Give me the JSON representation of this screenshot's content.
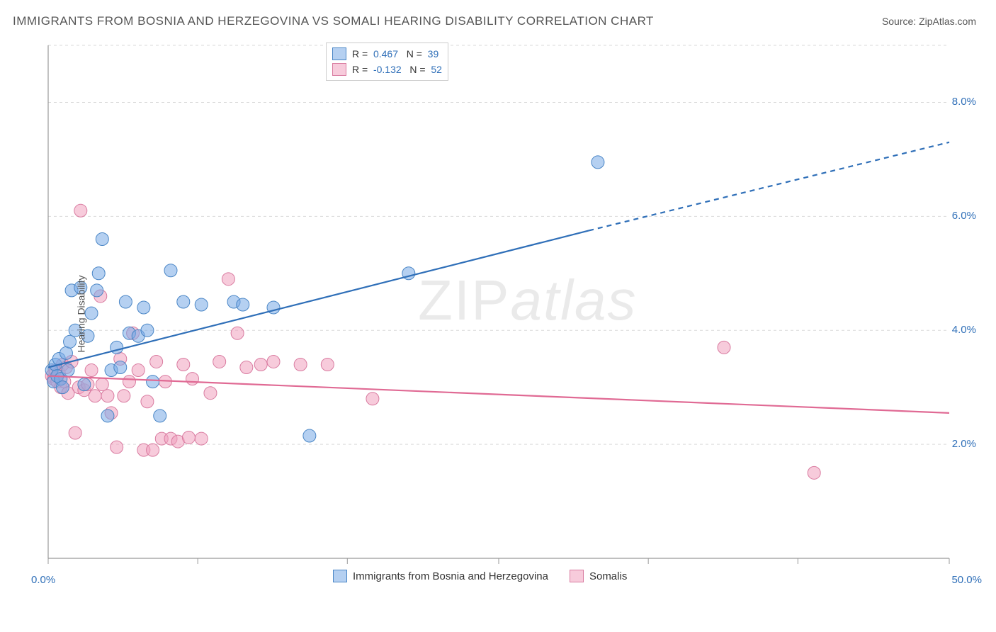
{
  "title": "IMMIGRANTS FROM BOSNIA AND HERZEGOVINA VS SOMALI HEARING DISABILITY CORRELATION CHART",
  "source_prefix": "Source: ",
  "source_name": "ZipAtlas.com",
  "ylabel": "Hearing Disability",
  "watermark_a": "ZIP",
  "watermark_b": "atlas",
  "colors": {
    "blue_fill": "rgba(120,170,230,0.55)",
    "blue_stroke": "#4a86c6",
    "blue_line": "#2f6fb8",
    "pink_fill": "rgba(240,160,190,0.55)",
    "pink_stroke": "#d97ba0",
    "pink_line": "#e06a94",
    "grid": "#d9d9d9",
    "axis": "#999",
    "num_blue": "#2f6fb8",
    "title_color": "#555"
  },
  "chart": {
    "type": "scatter",
    "xlim": [
      0,
      50
    ],
    "ylim": [
      0,
      9
    ],
    "yticks": [
      2,
      4,
      6,
      8
    ],
    "ytick_labels": [
      "2.0%",
      "4.0%",
      "6.0%",
      "8.0%"
    ],
    "xtick_labels": {
      "left": "0.0%",
      "right": "50.0%"
    },
    "xtick_positions": [
      0,
      8.3,
      16.6,
      25,
      33.3,
      41.6,
      50
    ],
    "grid_color": "#d9d9d9",
    "background": "#ffffff",
    "marker_radius": 9,
    "marker_opacity": 0.55,
    "line_width": 2.2
  },
  "stats_legend": {
    "series": [
      {
        "swatch": "blue",
        "r_label": "R =",
        "r_value": "0.467",
        "n_label": "N =",
        "n_value": "39"
      },
      {
        "swatch": "pink",
        "r_label": "R =",
        "r_value": "-0.132",
        "n_label": "N =",
        "n_value": "52"
      }
    ]
  },
  "bottom_legend": {
    "items": [
      {
        "swatch": "blue",
        "label": "Immigrants from Bosnia and Herzegovina"
      },
      {
        "swatch": "pink",
        "label": "Somalis"
      }
    ]
  },
  "series_blue": {
    "trend": {
      "x1": 0,
      "y1": 3.35,
      "x2": 30,
      "y2": 5.75,
      "x_dash_to": 50,
      "y_dash_to": 7.3
    },
    "points": [
      [
        0.2,
        3.3
      ],
      [
        0.3,
        3.1
      ],
      [
        0.4,
        3.4
      ],
      [
        0.5,
        3.2
      ],
      [
        0.6,
        3.5
      ],
      [
        0.7,
        3.15
      ],
      [
        0.8,
        3.0
      ],
      [
        1.0,
        3.6
      ],
      [
        1.1,
        3.3
      ],
      [
        1.3,
        4.7
      ],
      [
        1.5,
        4.0
      ],
      [
        1.8,
        4.75
      ],
      [
        2.0,
        3.05
      ],
      [
        2.2,
        3.9
      ],
      [
        2.4,
        4.3
      ],
      [
        2.7,
        4.7
      ],
      [
        3.0,
        5.6
      ],
      [
        3.3,
        2.5
      ],
      [
        3.5,
        3.3
      ],
      [
        4.0,
        3.35
      ],
      [
        4.3,
        4.5
      ],
      [
        4.5,
        3.95
      ],
      [
        5.0,
        3.9
      ],
      [
        5.3,
        4.4
      ],
      [
        5.8,
        3.1
      ],
      [
        6.2,
        2.5
      ],
      [
        6.8,
        5.05
      ],
      [
        7.5,
        4.5
      ],
      [
        8.5,
        4.45
      ],
      [
        10.3,
        4.5
      ],
      [
        10.8,
        4.45
      ],
      [
        12.5,
        4.4
      ],
      [
        14.5,
        2.15
      ],
      [
        20.0,
        5.0
      ],
      [
        30.5,
        6.95
      ],
      [
        1.2,
        3.8
      ],
      [
        2.8,
        5.0
      ],
      [
        3.8,
        3.7
      ],
      [
        5.5,
        4.0
      ]
    ]
  },
  "series_pink": {
    "trend": {
      "x1": 0,
      "y1": 3.2,
      "x2": 50,
      "y2": 2.55
    },
    "points": [
      [
        0.2,
        3.2
      ],
      [
        0.3,
        3.15
      ],
      [
        0.4,
        3.3
      ],
      [
        0.5,
        3.1
      ],
      [
        0.6,
        3.25
      ],
      [
        0.7,
        3.0
      ],
      [
        0.8,
        3.4
      ],
      [
        0.9,
        3.1
      ],
      [
        1.0,
        3.35
      ],
      [
        1.1,
        2.9
      ],
      [
        1.3,
        3.45
      ],
      [
        1.5,
        2.2
      ],
      [
        1.7,
        3.0
      ],
      [
        1.8,
        6.1
      ],
      [
        2.0,
        2.95
      ],
      [
        2.2,
        3.05
      ],
      [
        2.4,
        3.3
      ],
      [
        2.6,
        2.85
      ],
      [
        2.9,
        4.6
      ],
      [
        3.0,
        3.05
      ],
      [
        3.3,
        2.85
      ],
      [
        3.5,
        2.55
      ],
      [
        3.8,
        1.95
      ],
      [
        4.0,
        3.5
      ],
      [
        4.2,
        2.85
      ],
      [
        4.5,
        3.1
      ],
      [
        4.7,
        3.95
      ],
      [
        5.0,
        3.3
      ],
      [
        5.3,
        1.9
      ],
      [
        5.5,
        2.75
      ],
      [
        5.8,
        1.9
      ],
      [
        6.0,
        3.45
      ],
      [
        6.3,
        2.1
      ],
      [
        6.8,
        2.1
      ],
      [
        7.2,
        2.05
      ],
      [
        7.5,
        3.4
      ],
      [
        8.0,
        3.15
      ],
      [
        8.5,
        2.1
      ],
      [
        9.0,
        2.9
      ],
      [
        9.5,
        3.45
      ],
      [
        10.0,
        4.9
      ],
      [
        10.5,
        3.95
      ],
      [
        11.0,
        3.35
      ],
      [
        11.8,
        3.4
      ],
      [
        12.5,
        3.45
      ],
      [
        14.0,
        3.4
      ],
      [
        15.5,
        3.4
      ],
      [
        18.0,
        2.8
      ],
      [
        37.5,
        3.7
      ],
      [
        42.5,
        1.5
      ],
      [
        6.5,
        3.1
      ],
      [
        7.8,
        2.12
      ]
    ]
  }
}
